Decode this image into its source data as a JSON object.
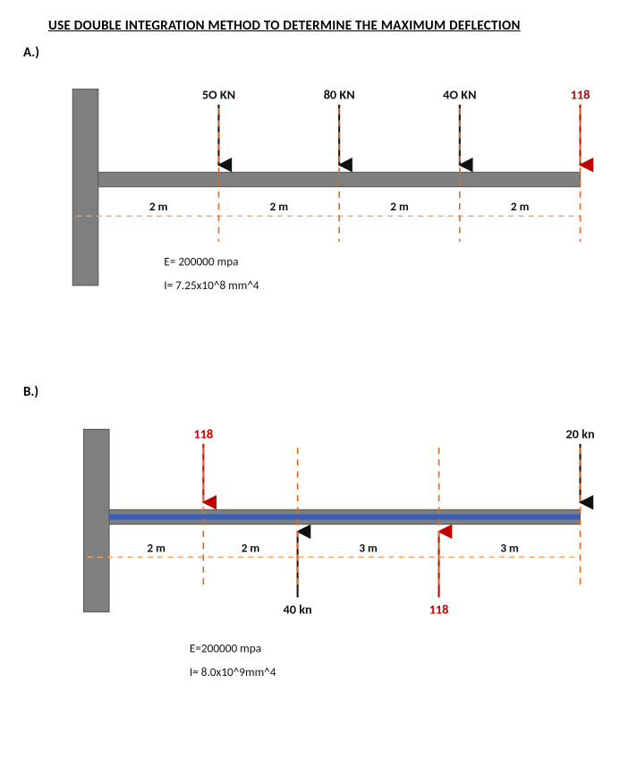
{
  "title": "USE DOUBLE INTEGRATION METHOD TO DETERMINE THE MAXIMUM DEFLECTION",
  "problem_a": {
    "label": "A.)",
    "beam_color": "#7f7f7f",
    "wall_color": "#7f7f7f",
    "wall_border": "#5a5a5a",
    "beam_border": "#5a5a5a",
    "dash_line_color": "#f4a460",
    "dash_tick_color": "#d86c2a",
    "arrow_color": "#111111",
    "red_color": "#c00000",
    "loads": [
      {
        "label": "5O KN",
        "is_red": false
      },
      {
        "label": "80 KN",
        "is_red": false
      },
      {
        "label": "4O KN",
        "is_red": false
      },
      {
        "label": "118",
        "is_red": true
      }
    ],
    "spans": [
      "2 m",
      "2 m",
      "2 m",
      "2 m"
    ],
    "params": {
      "E": "E= 200000 mpa",
      "I": "I= 7.25x10^8 mm^4"
    }
  },
  "problem_b": {
    "label": "B.)",
    "beam_color": "#7f7f7f",
    "wall_color": "#7f7f7f",
    "wall_border": "#5a5a5a",
    "beam_border": "#5a5a5a",
    "beam_inner_color": "#3a5fb8",
    "dash_line_color": "#f4a460",
    "dash_tick_color": "#d86c2a",
    "arrow_color": "#111111",
    "red_color": "#c00000",
    "loads": [
      {
        "label": "118",
        "dir": "down",
        "is_red": true,
        "x_idx": 0
      },
      {
        "label": "40 kn",
        "dir": "up",
        "is_red": false,
        "x_idx": 1
      },
      {
        "label": "118",
        "dir": "up",
        "is_red": true,
        "x_idx": 2
      },
      {
        "label": "20 kn",
        "dir": "down",
        "is_red": false,
        "x_idx": 3
      }
    ],
    "spans": [
      "2 m",
      "2 m",
      "3 m",
      "3 m"
    ],
    "span_widths": [
      2,
      2,
      3,
      3
    ],
    "params": {
      "E": "E=200000 mpa",
      "I": "I= 8.0x10^9mm^4"
    }
  }
}
